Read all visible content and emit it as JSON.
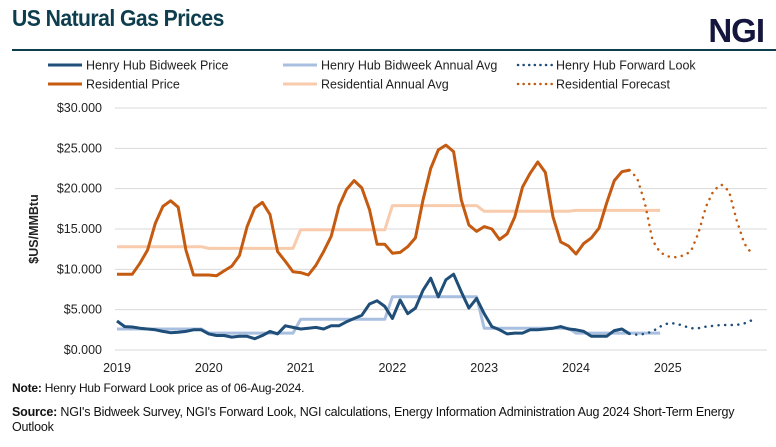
{
  "header": {
    "title": "US Natural Gas Prices",
    "logo": "NGI"
  },
  "colors": {
    "henry_hub": "#1f4e79",
    "henry_hub_avg": "#a9bfdf",
    "residential": "#c55a11",
    "residential_avg": "#f8cbad",
    "title": "#0e3e4e"
  },
  "chart_data": {
    "type": "line",
    "ylabel": "$US/MMBtu",
    "ylim": [
      0,
      30
    ],
    "yticks": [
      "$0.000",
      "$5.000",
      "$10.000",
      "$15.000",
      "$20.000",
      "$25.000",
      "$30.000"
    ],
    "xticks": [
      "2019",
      "2020",
      "2021",
      "2022",
      "2023",
      "2024",
      "2025"
    ],
    "x_frequency": "monthly",
    "grid": true,
    "legend_placement": "top",
    "series": [
      {
        "name": "Henry Hub Bidweek Price",
        "style": "solid",
        "start": "2019-01",
        "values": [
          3.6,
          2.9,
          2.85,
          2.7,
          2.6,
          2.5,
          2.3,
          2.15,
          2.2,
          2.3,
          2.5,
          2.5,
          2.0,
          1.8,
          1.8,
          1.6,
          1.7,
          1.7,
          1.4,
          1.8,
          2.3,
          2.0,
          3.0,
          2.8,
          2.6,
          2.7,
          2.8,
          2.6,
          3.0,
          3.0,
          3.5,
          3.9,
          4.3,
          5.7,
          6.1,
          5.4,
          3.9,
          6.2,
          4.5,
          5.2,
          7.4,
          8.9,
          6.6,
          8.7,
          9.4,
          7.2,
          5.2,
          6.4,
          4.5,
          2.9,
          2.5,
          2.0,
          2.1,
          2.1,
          2.5,
          2.5,
          2.6,
          2.7,
          2.9,
          2.6,
          2.5,
          2.3,
          1.7,
          1.7,
          1.7,
          2.4,
          2.6,
          2.0
        ]
      },
      {
        "name": "Henry Hub Bidweek Annual Avg",
        "style": "solid",
        "start": "2019-01",
        "values": [
          2.6,
          2.6,
          2.6,
          2.6,
          2.6,
          2.6,
          2.6,
          2.6,
          2.6,
          2.6,
          2.6,
          2.6,
          2.1,
          2.1,
          2.1,
          2.1,
          2.1,
          2.1,
          2.1,
          2.1,
          2.1,
          2.1,
          2.1,
          2.1,
          3.8,
          3.8,
          3.8,
          3.8,
          3.8,
          3.8,
          3.8,
          3.8,
          3.8,
          3.8,
          3.8,
          3.8,
          6.6,
          6.6,
          6.6,
          6.6,
          6.6,
          6.6,
          6.6,
          6.6,
          6.6,
          6.6,
          6.6,
          6.6,
          2.7,
          2.7,
          2.7,
          2.7,
          2.7,
          2.7,
          2.7,
          2.7,
          2.7,
          2.7,
          2.7,
          2.7,
          2.1,
          2.1,
          2.1,
          2.1,
          2.1,
          2.1,
          2.1,
          2.1,
          2.1,
          2.1,
          2.1,
          2.1
        ]
      },
      {
        "name": "Henry Hub Forward Look",
        "style": "dotted",
        "start": "2024-08",
        "values": [
          2.0,
          1.9,
          2.0,
          2.3,
          2.9,
          3.3,
          3.3,
          3.0,
          2.7,
          2.7,
          2.9,
          3.0,
          3.1,
          3.1,
          3.1,
          3.3,
          3.7
        ]
      },
      {
        "name": "Residential Price",
        "style": "solid",
        "start": "2019-01",
        "values": [
          9.4,
          9.4,
          9.4,
          10.75,
          12.4,
          15.7,
          17.8,
          18.5,
          17.7,
          12.4,
          9.3,
          9.3,
          9.3,
          9.2,
          9.8,
          10.4,
          11.7,
          15.3,
          17.6,
          18.3,
          16.8,
          12.2,
          11.0,
          9.7,
          9.6,
          9.3,
          10.5,
          12.2,
          14.1,
          17.8,
          19.9,
          21.0,
          20.1,
          17.4,
          13.1,
          13.1,
          12.0,
          12.1,
          12.8,
          13.9,
          18.6,
          22.5,
          24.8,
          25.4,
          24.6,
          18.6,
          15.5,
          14.7,
          15.3,
          15.0,
          13.7,
          14.4,
          16.5,
          20.2,
          21.9,
          23.3,
          22.0,
          16.5,
          13.4,
          12.9,
          11.9,
          13.2,
          13.9,
          15.1,
          18.2,
          21.0,
          22.1,
          22.3
        ]
      },
      {
        "name": "Residential Annual Avg",
        "style": "solid",
        "start": "2019-01",
        "values": [
          12.8,
          12.8,
          12.8,
          12.8,
          12.8,
          12.8,
          12.8,
          12.8,
          12.8,
          12.8,
          12.8,
          12.8,
          12.6,
          12.6,
          12.6,
          12.6,
          12.6,
          12.6,
          12.6,
          12.6,
          12.6,
          12.6,
          12.6,
          12.6,
          14.9,
          14.9,
          14.9,
          14.9,
          14.9,
          14.9,
          14.9,
          14.9,
          14.9,
          14.9,
          14.9,
          14.9,
          17.9,
          17.9,
          17.9,
          17.9,
          17.9,
          17.9,
          17.9,
          17.9,
          17.9,
          17.9,
          17.9,
          17.9,
          17.2,
          17.2,
          17.2,
          17.2,
          17.2,
          17.2,
          17.2,
          17.2,
          17.2,
          17.2,
          17.2,
          17.2,
          17.3,
          17.3,
          17.3,
          17.3,
          17.3,
          17.3,
          17.3,
          17.3,
          17.3,
          17.3,
          17.3,
          17.3
        ]
      },
      {
        "name": "Residential Forecast",
        "style": "dotted",
        "start": "2024-08",
        "values": [
          22.3,
          21.3,
          18.2,
          13.6,
          12.1,
          11.6,
          11.5,
          11.7,
          12.2,
          14.5,
          17.8,
          19.8,
          20.5,
          19.7,
          16.1,
          13.2,
          11.9
        ]
      }
    ]
  },
  "notes": {
    "note_label": "Note:",
    "note_text": " Henry Hub Forward  Look price as of 06-Aug-2024.",
    "source_label": "Source:",
    "source_text": " NGI's Bidweek Survey, NGI's  Forward Look,  NGI  calculations, Energy Information Administration Aug 2024 Short-Term Energy Outlook"
  }
}
